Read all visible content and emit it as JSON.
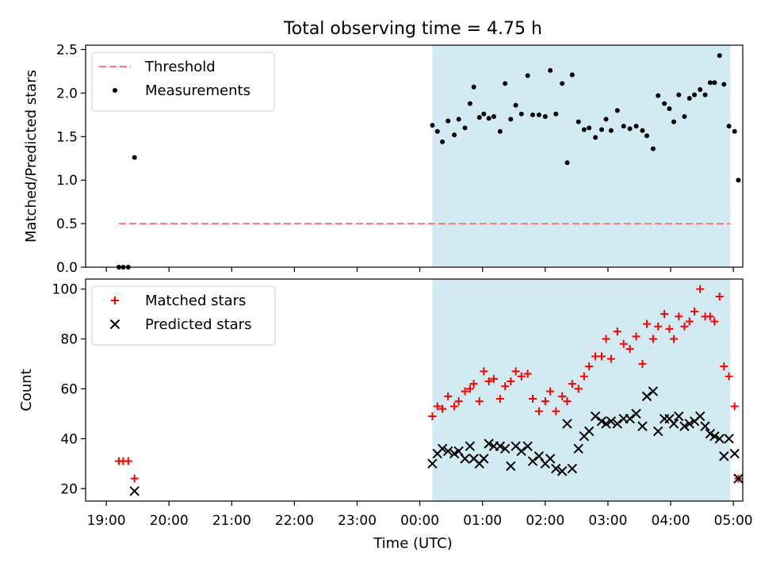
{
  "title": "Total observing time = 4.75 h",
  "colors": {
    "shade": "#add8e6",
    "threshold": "#ff7f7f",
    "matched": "#ff0000",
    "predicted": "#000000",
    "measurement": "#000000"
  },
  "chart_data": [
    {
      "type": "scatter",
      "ylabel": "Matched/Predicted stars",
      "ylim": [
        0,
        2.55
      ],
      "y_ticks": [
        "0.0",
        "0.5",
        "1.0",
        "1.5",
        "2.0",
        "2.5"
      ],
      "x_unit": "hours since 19:00 UTC",
      "xlim": [
        -0.33,
        10.15
      ],
      "legend_position": "upper left",
      "observing_window": [
        5.2,
        9.95
      ],
      "threshold": {
        "name": "Threshold",
        "y": 0.5,
        "x_start": 0.2,
        "x_end": 9.95
      },
      "series": [
        {
          "name": "Measurements",
          "marker": "dot",
          "points": [
            [
              0.2,
              0.0
            ],
            [
              0.27,
              0.0
            ],
            [
              0.35,
              0.0
            ],
            [
              0.45,
              1.26
            ],
            [
              5.2,
              1.63
            ],
            [
              5.28,
              1.56
            ],
            [
              5.36,
              1.44
            ],
            [
              5.45,
              1.68
            ],
            [
              5.55,
              1.52
            ],
            [
              5.62,
              1.7
            ],
            [
              5.72,
              1.6
            ],
            [
              5.8,
              1.88
            ],
            [
              5.86,
              2.07
            ],
            [
              5.95,
              1.72
            ],
            [
              6.02,
              1.76
            ],
            [
              6.1,
              1.71
            ],
            [
              6.18,
              1.73
            ],
            [
              6.28,
              1.56
            ],
            [
              6.36,
              2.11
            ],
            [
              6.45,
              1.7
            ],
            [
              6.53,
              1.86
            ],
            [
              6.62,
              1.76
            ],
            [
              6.72,
              2.2
            ],
            [
              6.8,
              1.75
            ],
            [
              6.9,
              1.75
            ],
            [
              7.0,
              1.73
            ],
            [
              7.08,
              2.26
            ],
            [
              7.17,
              1.76
            ],
            [
              7.27,
              2.11
            ],
            [
              7.35,
              1.2
            ],
            [
              7.43,
              2.21
            ],
            [
              7.53,
              1.67
            ],
            [
              7.62,
              1.58
            ],
            [
              7.7,
              1.6
            ],
            [
              7.8,
              1.49
            ],
            [
              7.9,
              1.58
            ],
            [
              7.97,
              1.7
            ],
            [
              8.05,
              1.57
            ],
            [
              8.15,
              1.8
            ],
            [
              8.25,
              1.62
            ],
            [
              8.35,
              1.59
            ],
            [
              8.45,
              1.62
            ],
            [
              8.55,
              1.57
            ],
            [
              8.62,
              1.51
            ],
            [
              8.72,
              1.36
            ],
            [
              8.8,
              1.97
            ],
            [
              8.9,
              1.88
            ],
            [
              8.98,
              1.82
            ],
            [
              9.05,
              1.67
            ],
            [
              9.13,
              1.98
            ],
            [
              9.22,
              1.73
            ],
            [
              9.3,
              1.94
            ],
            [
              9.38,
              1.98
            ],
            [
              9.47,
              2.04
            ],
            [
              9.55,
              1.98
            ],
            [
              9.63,
              2.12
            ],
            [
              9.7,
              2.12
            ],
            [
              9.78,
              2.43
            ],
            [
              9.85,
              2.1
            ],
            [
              9.93,
              1.62
            ],
            [
              10.02,
              1.56
            ],
            [
              10.08,
              1.0
            ]
          ]
        }
      ]
    },
    {
      "type": "scatter",
      "xlabel": "Time (UTC)",
      "ylabel": "Count",
      "ylim": [
        15,
        104
      ],
      "y_ticks": [
        "20",
        "40",
        "60",
        "80",
        "100"
      ],
      "x_ticks": [
        "19:00",
        "20:00",
        "21:00",
        "22:00",
        "23:00",
        "00:00",
        "01:00",
        "02:00",
        "03:00",
        "04:00",
        "05:00"
      ],
      "x_unit": "hours since 19:00 UTC",
      "xlim": [
        -0.33,
        10.15
      ],
      "legend_position": "upper left",
      "observing_window": [
        5.2,
        9.95
      ],
      "series": [
        {
          "name": "Matched stars",
          "marker": "plus",
          "points": [
            [
              0.2,
              31
            ],
            [
              0.27,
              31
            ],
            [
              0.35,
              31
            ],
            [
              0.45,
              24
            ],
            [
              5.2,
              49
            ],
            [
              5.28,
              53
            ],
            [
              5.36,
              52
            ],
            [
              5.45,
              57
            ],
            [
              5.55,
              53
            ],
            [
              5.62,
              55
            ],
            [
              5.72,
              59
            ],
            [
              5.8,
              60
            ],
            [
              5.86,
              62
            ],
            [
              5.95,
              55
            ],
            [
              6.02,
              67
            ],
            [
              6.1,
              63
            ],
            [
              6.18,
              64
            ],
            [
              6.28,
              56
            ],
            [
              6.36,
              61
            ],
            [
              6.45,
              63
            ],
            [
              6.53,
              67
            ],
            [
              6.62,
              65
            ],
            [
              6.72,
              66
            ],
            [
              6.8,
              56
            ],
            [
              6.9,
              51
            ],
            [
              7.0,
              55
            ],
            [
              7.08,
              59
            ],
            [
              7.17,
              51
            ],
            [
              7.27,
              57
            ],
            [
              7.35,
              55
            ],
            [
              7.43,
              62
            ],
            [
              7.53,
              60
            ],
            [
              7.62,
              65
            ],
            [
              7.7,
              69
            ],
            [
              7.8,
              73
            ],
            [
              7.9,
              73
            ],
            [
              7.97,
              80
            ],
            [
              8.05,
              72
            ],
            [
              8.15,
              83
            ],
            [
              8.25,
              78
            ],
            [
              8.35,
              76
            ],
            [
              8.45,
              81
            ],
            [
              8.55,
              70
            ],
            [
              8.62,
              86
            ],
            [
              8.72,
              80
            ],
            [
              8.8,
              85
            ],
            [
              8.9,
              90
            ],
            [
              8.98,
              84
            ],
            [
              9.05,
              80
            ],
            [
              9.13,
              89
            ],
            [
              9.22,
              85
            ],
            [
              9.3,
              87
            ],
            [
              9.38,
              91
            ],
            [
              9.47,
              100
            ],
            [
              9.55,
              89
            ],
            [
              9.63,
              89
            ],
            [
              9.7,
              87
            ],
            [
              9.78,
              97
            ],
            [
              9.85,
              69
            ],
            [
              9.93,
              65
            ],
            [
              10.02,
              53
            ],
            [
              10.08,
              24
            ]
          ]
        },
        {
          "name": "Predicted stars",
          "marker": "x",
          "points": [
            [
              0.45,
              19
            ],
            [
              5.2,
              30
            ],
            [
              5.28,
              34
            ],
            [
              5.36,
              36
            ],
            [
              5.45,
              35
            ],
            [
              5.55,
              34
            ],
            [
              5.62,
              35
            ],
            [
              5.72,
              32
            ],
            [
              5.8,
              37
            ],
            [
              5.86,
              32
            ],
            [
              5.95,
              30
            ],
            [
              6.02,
              32
            ],
            [
              6.1,
              38
            ],
            [
              6.18,
              37
            ],
            [
              6.28,
              37
            ],
            [
              6.36,
              36
            ],
            [
              6.45,
              29
            ],
            [
              6.53,
              37
            ],
            [
              6.62,
              35
            ],
            [
              6.72,
              37
            ],
            [
              6.8,
              31
            ],
            [
              6.9,
              33
            ],
            [
              7.0,
              30
            ],
            [
              7.08,
              32
            ],
            [
              7.17,
              28
            ],
            [
              7.27,
              27
            ],
            [
              7.35,
              46
            ],
            [
              7.43,
              28
            ],
            [
              7.53,
              36
            ],
            [
              7.62,
              41
            ],
            [
              7.7,
              43
            ],
            [
              7.8,
              49
            ],
            [
              7.9,
              47
            ],
            [
              7.97,
              46
            ],
            [
              8.05,
              47
            ],
            [
              8.15,
              46
            ],
            [
              8.25,
              48
            ],
            [
              8.35,
              48
            ],
            [
              8.45,
              50
            ],
            [
              8.55,
              45
            ],
            [
              8.62,
              57
            ],
            [
              8.72,
              59
            ],
            [
              8.8,
              43
            ],
            [
              8.9,
              48
            ],
            [
              8.98,
              48
            ],
            [
              9.05,
              46
            ],
            [
              9.13,
              49
            ],
            [
              9.22,
              45
            ],
            [
              9.3,
              46
            ],
            [
              9.38,
              47
            ],
            [
              9.47,
              49
            ],
            [
              9.55,
              45
            ],
            [
              9.63,
              42
            ],
            [
              9.7,
              41
            ],
            [
              9.78,
              40
            ],
            [
              9.85,
              33
            ],
            [
              9.93,
              40
            ],
            [
              10.02,
              34
            ],
            [
              10.08,
              24
            ]
          ]
        }
      ]
    }
  ]
}
